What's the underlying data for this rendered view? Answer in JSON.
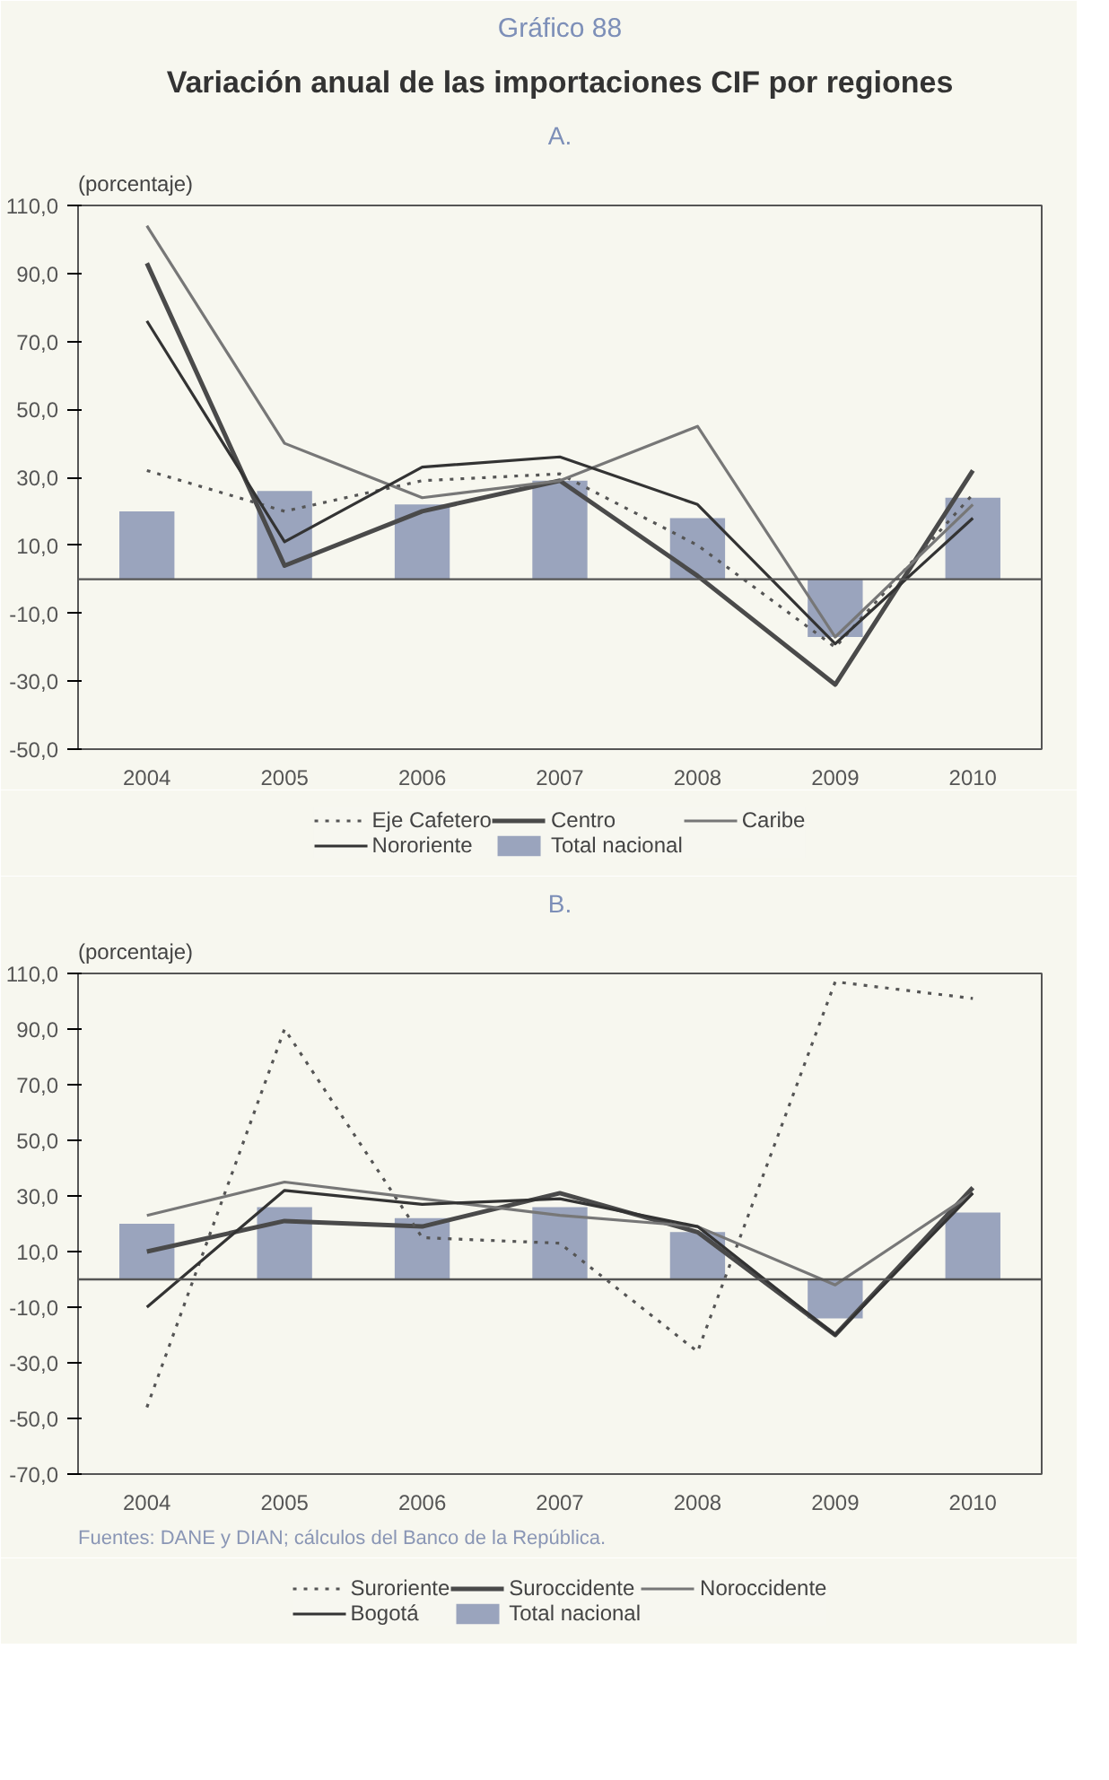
{
  "chart_data": [
    {
      "type": "line",
      "title": "Gráfico 88",
      "subtitle": "Variación anual de las importaciones CIF por regiones",
      "annotations": [
        "A."
      ],
      "ylabel": "(porcentaje)",
      "categories": [
        "2004",
        "2005",
        "2006",
        "2007",
        "2008",
        "2009",
        "2010"
      ],
      "ylim": [
        -50,
        110
      ],
      "yticks": [
        {
          "value": -50,
          "label": "-50,0"
        },
        {
          "value": -30,
          "label": "-30,0"
        },
        {
          "value": -10,
          "label": "-10,0"
        },
        {
          "value": 10,
          "label": "10,0"
        },
        {
          "value": 30,
          "label": "30,0"
        },
        {
          "value": 50,
          "label": "50,0"
        },
        {
          "value": 70,
          "label": "70,0"
        },
        {
          "value": 90,
          "label": "90,0"
        },
        {
          "value": 110,
          "label": "110,0"
        }
      ],
      "ref_lines": [
        {
          "axis": "y",
          "value": 0,
          "color": "#555555"
        }
      ],
      "legend": "bottom",
      "grid": false,
      "series": [
        {
          "name": "Eje Cafetero",
          "color": "#555555",
          "line_style": "dotted",
          "values": [
            32,
            20,
            29,
            31,
            10,
            -20,
            25
          ]
        },
        {
          "name": "Centro",
          "color": "#4a4a4a",
          "values": [
            93,
            4,
            20,
            29,
            1,
            -31,
            32
          ]
        },
        {
          "name": "Caribe",
          "color": "#777777",
          "values": [
            104,
            40,
            24,
            29,
            45,
            -17,
            22
          ]
        },
        {
          "name": "Nororiente",
          "color": "#333333",
          "values": [
            76,
            11,
            33,
            36,
            22,
            -19,
            18
          ]
        },
        {
          "name": "Total nacional",
          "type": "bar",
          "color": "#9aa4bd",
          "values": [
            20,
            26,
            22,
            29,
            18,
            -17,
            24
          ]
        }
      ]
    },
    {
      "type": "line",
      "title": "B.",
      "ylabel": "(porcentaje)",
      "annotations": [
        "Fuentes: DANE y DIAN; cálculos del Banco de la República."
      ],
      "categories": [
        "2004",
        "2005",
        "2006",
        "2007",
        "2008",
        "2009",
        "2010"
      ],
      "ylim": [
        -70,
        110
      ],
      "yticks": [
        {
          "value": -70,
          "label": "-70,0"
        },
        {
          "value": -50,
          "label": "-50,0"
        },
        {
          "value": -30,
          "label": "-30,0"
        },
        {
          "value": -10,
          "label": "-10,0"
        },
        {
          "value": 10,
          "label": "10,0"
        },
        {
          "value": 30,
          "label": "30,0"
        },
        {
          "value": 50,
          "label": "50,0"
        },
        {
          "value": 70,
          "label": "70,0"
        },
        {
          "value": 90,
          "label": "90,0"
        },
        {
          "value": 110,
          "label": "110,0"
        }
      ],
      "ref_lines": [
        {
          "axis": "y",
          "value": 0,
          "color": "#555555"
        }
      ],
      "legend": "bottom",
      "grid": false,
      "series": [
        {
          "name": "Suroriente",
          "color": "#555555",
          "line_style": "dotted",
          "values": [
            -46,
            90,
            15,
            13,
            -26,
            107,
            101
          ]
        },
        {
          "name": "Suroccidente",
          "color": "#4a4a4a",
          "values": [
            10,
            21,
            19,
            31,
            17,
            -20,
            33
          ]
        },
        {
          "name": "Noroccidente",
          "color": "#777777",
          "values": [
            23,
            35,
            29,
            23,
            19,
            -2,
            31
          ]
        },
        {
          "name": "Bogotá",
          "color": "#333333",
          "values": [
            -10,
            32,
            27,
            29,
            19,
            -20,
            31
          ]
        },
        {
          "name": "Total nacional",
          "type": "bar",
          "color": "#9aa4bd",
          "values": [
            20,
            26,
            22,
            26,
            17,
            -14,
            24
          ]
        }
      ]
    }
  ]
}
